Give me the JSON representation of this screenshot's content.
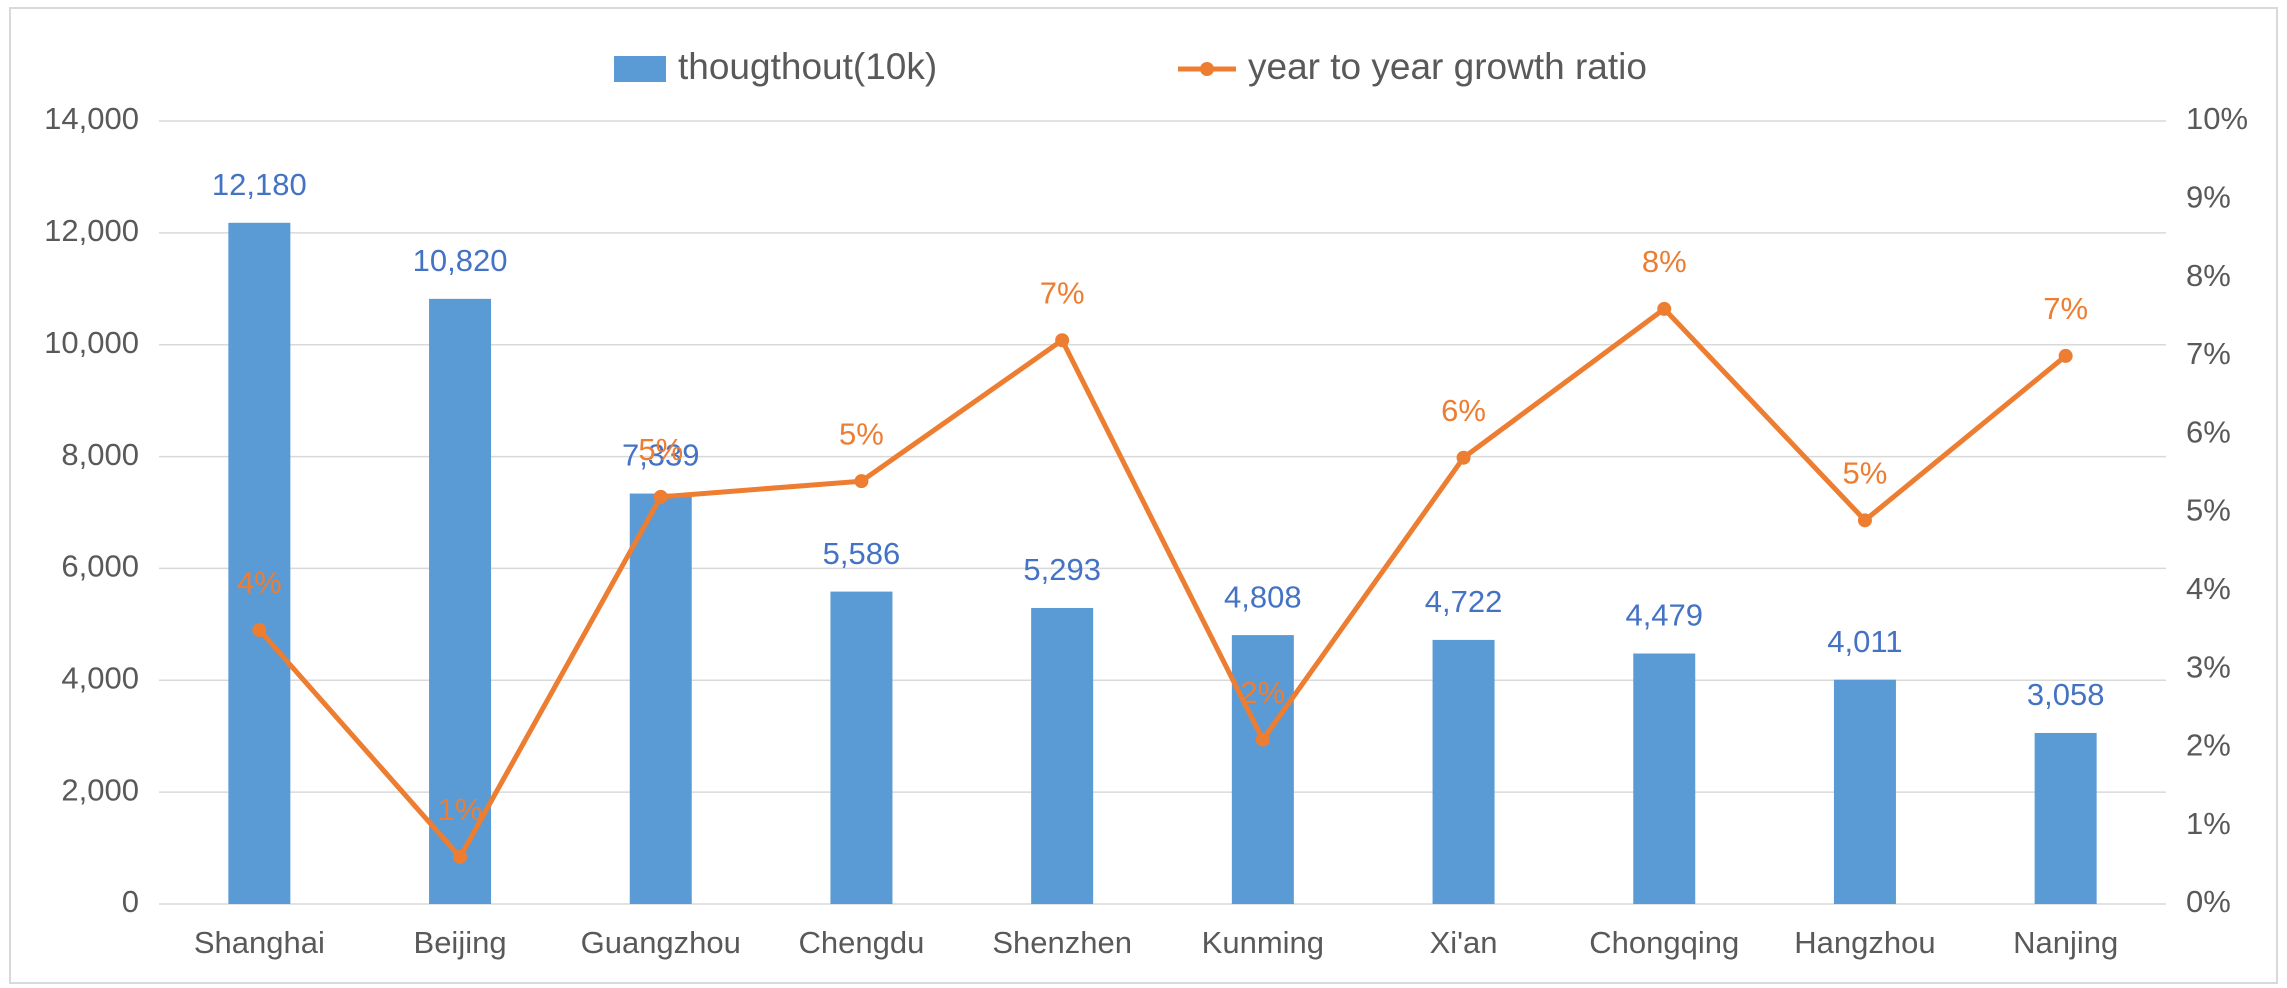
{
  "chart_data": {
    "type": "bar",
    "categories": [
      "Shanghai",
      "Beijing",
      "Guangzhou",
      "Chengdu",
      "Shenzhen",
      "Kunming",
      "Xi'an",
      "Chongqing",
      "Hangzhou",
      "Nanjing"
    ],
    "series": [
      {
        "name": "thougthout(10k)",
        "type": "bar",
        "color": "#5b9bd5",
        "values": [
          12180,
          10820,
          7339,
          5586,
          5293,
          4808,
          4722,
          4479,
          4011,
          3058
        ],
        "value_labels": [
          "12,180",
          "10,820",
          "7,339",
          "5,586",
          "5,293",
          "4,808",
          "4,722",
          "4,479",
          "4,011",
          "3,058"
        ],
        "label_color": "#4472c4"
      },
      {
        "name": "year to year growth ratio",
        "type": "line",
        "axis": "y2",
        "color": "#ed7d31",
        "values": [
          3.5,
          0.6,
          5.2,
          5.4,
          7.2,
          2.1,
          5.7,
          7.6,
          4.9,
          7.0
        ],
        "value_labels": [
          "4%",
          "1%",
          "5%",
          "5%",
          "7%",
          "2%",
          "6%",
          "8%",
          "5%",
          "7%"
        ]
      }
    ],
    "ylim": [
      0,
      14000
    ],
    "yticks": [
      0,
      {
        "value": 2000,
        "label": "2,000"
      },
      {
        "value": 4000,
        "label": "4,000"
      },
      {
        "value": 6000,
        "label": "6,000"
      },
      {
        "value": 8000,
        "label": "8,000"
      },
      {
        "value": 10000,
        "label": "10,000"
      },
      {
        "value": 12000,
        "label": "12,000"
      },
      {
        "value": 14000,
        "label": "14,000"
      }
    ],
    "y2lim": [
      0,
      10
    ],
    "y2ticks": [
      {
        "value": 0,
        "label": "0%"
      },
      {
        "value": 1,
        "label": "1%"
      },
      {
        "value": 2,
        "label": "2%"
      },
      {
        "value": 3,
        "label": "3%"
      },
      {
        "value": 4,
        "label": "4%"
      },
      {
        "value": 5,
        "label": "5%"
      },
      {
        "value": 6,
        "label": "6%"
      },
      {
        "value": 7,
        "label": "7%"
      },
      {
        "value": 8,
        "label": "8%"
      },
      {
        "value": 9,
        "label": "9%"
      },
      {
        "value": 10,
        "label": "10%"
      }
    ],
    "grid": true,
    "legend": "top"
  }
}
